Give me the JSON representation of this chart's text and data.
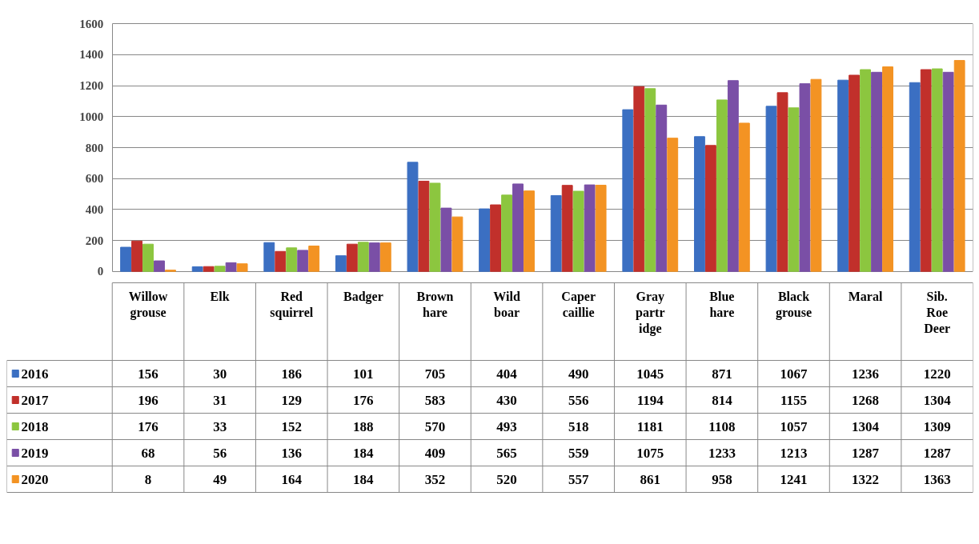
{
  "chart_data": {
    "type": "bar",
    "categories": [
      "Willow grouse",
      "Elk",
      "Red squirrel",
      "Badger",
      "Brown hare",
      "Wild boar",
      "Capercaillie",
      "Gray partridge",
      "Blue hare",
      "Black grouse",
      "Maral",
      "Sib. Roe Deer"
    ],
    "series": [
      {
        "name": "2016",
        "color": "#3b6fc2",
        "values": [
          156,
          30,
          186,
          101,
          705,
          404,
          490,
          1045,
          871,
          1067,
          1236,
          1220
        ]
      },
      {
        "name": "2017",
        "color": "#c1302b",
        "values": [
          196,
          31,
          129,
          176,
          583,
          430,
          556,
          1194,
          814,
          1155,
          1268,
          1304
        ]
      },
      {
        "name": "2018",
        "color": "#8cc63f",
        "values": [
          176,
          33,
          152,
          188,
          570,
          493,
          518,
          1181,
          1108,
          1057,
          1304,
          1309
        ]
      },
      {
        "name": "2019",
        "color": "#7a4fa6",
        "values": [
          68,
          56,
          136,
          184,
          409,
          565,
          559,
          1075,
          1233,
          1213,
          1287,
          1287
        ]
      },
      {
        "name": "2020",
        "color": "#f39323",
        "values": [
          8,
          49,
          164,
          184,
          352,
          520,
          557,
          861,
          958,
          1241,
          1322,
          1363
        ]
      }
    ],
    "ylim": [
      0,
      1600
    ],
    "yticks": [
      0,
      200,
      400,
      600,
      800,
      1000,
      1200,
      1400,
      1600
    ],
    "grid": "y",
    "legend": "bottom left",
    "data_labels": true
  }
}
